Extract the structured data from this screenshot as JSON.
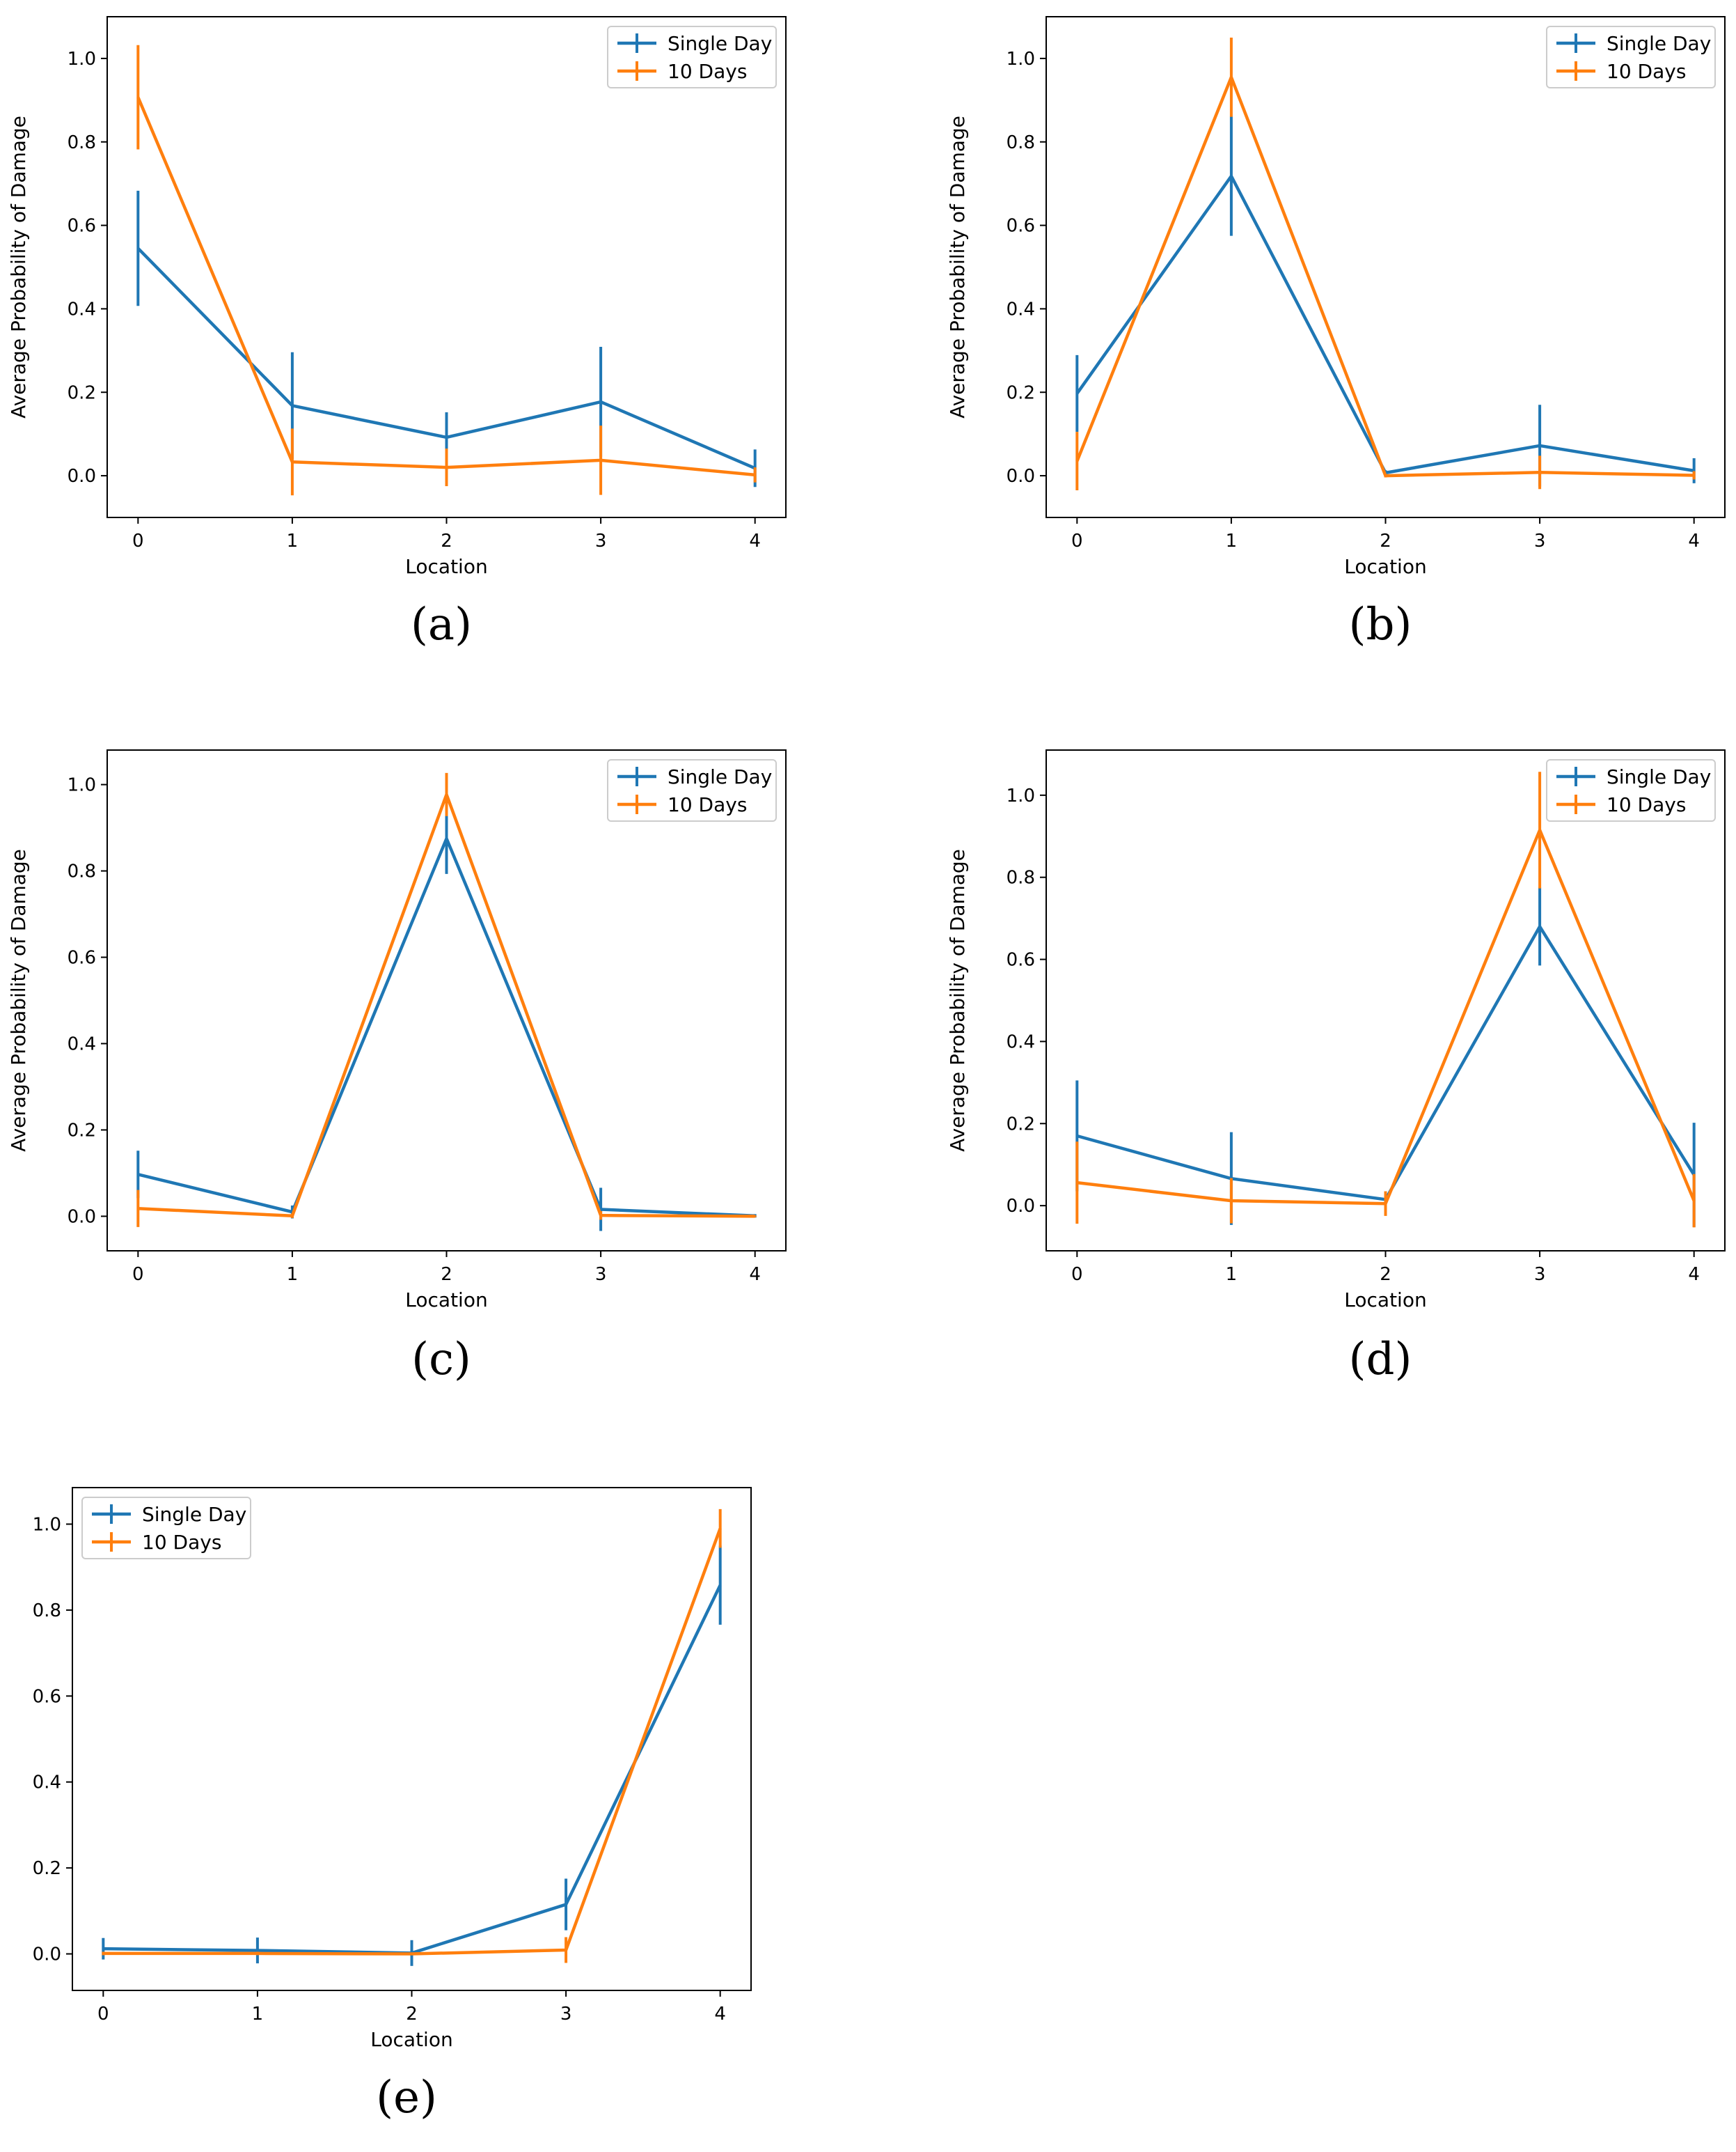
{
  "chart_data": [
    {
      "type": "line",
      "panel": "a",
      "caption": "(a)",
      "xlabel": "Location",
      "ylabel": "Average Probability of Damage",
      "x": [
        0,
        1,
        2,
        3,
        4
      ],
      "xticks": [
        "0",
        "1",
        "2",
        "3",
        "4"
      ],
      "yticks": [
        "0.0",
        "0.2",
        "0.4",
        "0.6",
        "0.8",
        "1.0"
      ],
      "xlim": [
        -0.2,
        4.2
      ],
      "ylim": [
        -0.1,
        1.1
      ],
      "legend_loc": "upper right",
      "series": [
        {
          "name": "Single Day",
          "color": "#1f77b4",
          "values": [
            0.545,
            0.168,
            0.092,
            0.177,
            0.018
          ],
          "errors": [
            0.138,
            0.128,
            0.06,
            0.132,
            0.045
          ]
        },
        {
          "name": "10 Days",
          "color": "#ff7f0e",
          "values": [
            0.907,
            0.033,
            0.02,
            0.037,
            0.002
          ],
          "errors": [
            0.125,
            0.08,
            0.045,
            0.083,
            0.018
          ]
        }
      ]
    },
    {
      "type": "line",
      "panel": "b",
      "caption": "(b)",
      "xlabel": "Location",
      "ylabel": "Average Probability of Damage",
      "x": [
        0,
        1,
        2,
        3,
        4
      ],
      "xticks": [
        "0",
        "1",
        "2",
        "3",
        "4"
      ],
      "yticks": [
        "0.0",
        "0.2",
        "0.4",
        "0.6",
        "0.8",
        "1.0"
      ],
      "xlim": [
        -0.2,
        4.2
      ],
      "ylim": [
        -0.1,
        1.1
      ],
      "legend_loc": "upper right",
      "series": [
        {
          "name": "Single Day",
          "color": "#1f77b4",
          "values": [
            0.197,
            0.718,
            0.007,
            0.072,
            0.012
          ],
          "errors": [
            0.092,
            0.143,
            0.006,
            0.098,
            0.03
          ]
        },
        {
          "name": "10 Days",
          "color": "#ff7f0e",
          "values": [
            0.035,
            0.955,
            0.0,
            0.008,
            0.001
          ],
          "errors": [
            0.07,
            0.095,
            0.004,
            0.04,
            0.01
          ]
        }
      ]
    },
    {
      "type": "line",
      "panel": "c",
      "caption": "(c)",
      "xlabel": "Location",
      "ylabel": "Average Probability of Damage",
      "x": [
        0,
        1,
        2,
        3,
        4
      ],
      "xticks": [
        "0",
        "1",
        "2",
        "3",
        "4"
      ],
      "yticks": [
        "0.0",
        "0.2",
        "0.4",
        "0.6",
        "0.8",
        "1.0"
      ],
      "xlim": [
        -0.2,
        4.2
      ],
      "ylim": [
        -0.08,
        1.08
      ],
      "legend_loc": "upper right",
      "series": [
        {
          "name": "Single Day",
          "color": "#1f77b4",
          "values": [
            0.097,
            0.01,
            0.875,
            0.016,
            0.001
          ],
          "errors": [
            0.055,
            0.015,
            0.082,
            0.05,
            0.004
          ]
        },
        {
          "name": "10 Days",
          "color": "#ff7f0e",
          "values": [
            0.018,
            0.001,
            0.977,
            0.002,
            0.0
          ],
          "errors": [
            0.043,
            0.005,
            0.05,
            0.01,
            0.002
          ]
        }
      ]
    },
    {
      "type": "line",
      "panel": "d",
      "caption": "(d)",
      "xlabel": "Location",
      "ylabel": "Average Probability of Damage",
      "x": [
        0,
        1,
        2,
        3,
        4
      ],
      "xticks": [
        "0",
        "1",
        "2",
        "3",
        "4"
      ],
      "yticks": [
        "0.0",
        "0.2",
        "0.4",
        "0.6",
        "0.8",
        "1.0"
      ],
      "xlim": [
        -0.2,
        4.2
      ],
      "ylim": [
        -0.11,
        1.11
      ],
      "legend_loc": "upper right",
      "series": [
        {
          "name": "Single Day",
          "color": "#1f77b4",
          "values": [
            0.17,
            0.066,
            0.015,
            0.68,
            0.075
          ],
          "errors": [
            0.135,
            0.113,
            0.02,
            0.095,
            0.127
          ]
        },
        {
          "name": "10 Days",
          "color": "#ff7f0e",
          "values": [
            0.056,
            0.012,
            0.005,
            0.915,
            0.012
          ],
          "errors": [
            0.1,
            0.055,
            0.03,
            0.142,
            0.065
          ]
        }
      ]
    },
    {
      "type": "line",
      "panel": "e",
      "caption": "(e)",
      "xlabel": "Location",
      "ylabel": "Average Probability of Damage",
      "x": [
        0,
        1,
        2,
        3,
        4
      ],
      "xticks": [
        "0",
        "1",
        "2",
        "3",
        "4"
      ],
      "yticks": [
        "0.0",
        "0.2",
        "0.4",
        "0.6",
        "0.8",
        "1.0"
      ],
      "xlim": [
        -0.2,
        4.2
      ],
      "ylim": [
        -0.085,
        1.085
      ],
      "legend_loc": "upper left",
      "series": [
        {
          "name": "Single Day",
          "color": "#1f77b4",
          "values": [
            0.012,
            0.008,
            0.002,
            0.115,
            0.858
          ],
          "errors": [
            0.025,
            0.03,
            0.03,
            0.06,
            0.092
          ]
        },
        {
          "name": "10 Days",
          "color": "#ff7f0e",
          "values": [
            0.001,
            0.001,
            0.0,
            0.009,
            0.99
          ],
          "errors": [
            0.004,
            0.004,
            0.002,
            0.03,
            0.045
          ]
        }
      ]
    }
  ]
}
